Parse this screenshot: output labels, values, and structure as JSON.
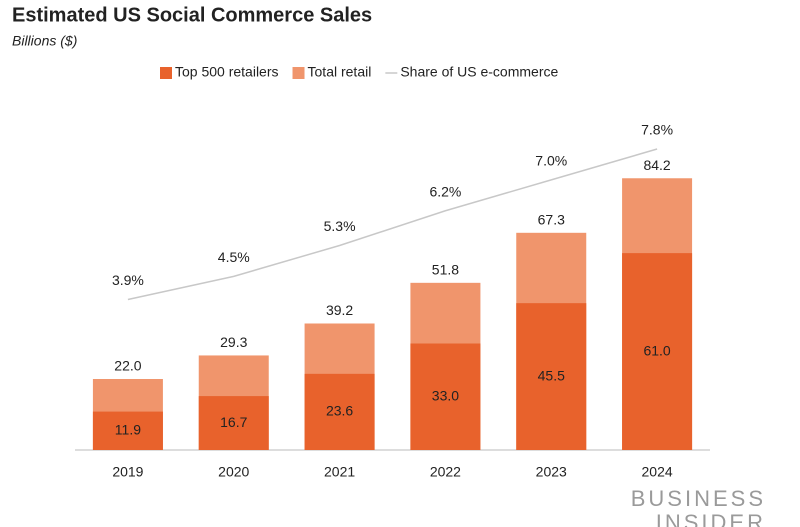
{
  "chart_data": {
    "type": "bar",
    "title": "Estimated US Social Commerce Sales",
    "subtitle": "Billions ($)",
    "categories": [
      "2019",
      "2020",
      "2021",
      "2022",
      "2023",
      "2024"
    ],
    "series": [
      {
        "name": "Top 500 retailers",
        "color": "#e8622c",
        "values": [
          11.9,
          16.7,
          23.6,
          33.0,
          45.5,
          61.0
        ],
        "value_labels": [
          "11.9",
          "16.7",
          "23.6",
          "33.0",
          "45.5",
          "61.0"
        ]
      },
      {
        "name": "Total retail",
        "color": "#f0956c",
        "values": [
          22.0,
          29.3,
          39.2,
          51.8,
          67.3,
          84.2
        ],
        "value_labels": [
          "22.0",
          "29.3",
          "39.2",
          "51.8",
          "67.3",
          "84.2"
        ]
      },
      {
        "name": "Share of US e-commerce",
        "type": "line",
        "axis": "y2",
        "color": "#c8c8c8",
        "values": [
          3.9,
          4.5,
          5.3,
          6.2,
          7.0,
          7.8
        ],
        "value_labels": [
          "3.9%",
          "4.5%",
          "5.3%",
          "6.2%",
          "7.0%",
          "7.8%"
        ]
      }
    ],
    "ylim": [
      0,
      110
    ],
    "y2lim": [
      0,
      9.2
    ],
    "brand": [
      "BUSINESS",
      "INSIDER"
    ]
  }
}
